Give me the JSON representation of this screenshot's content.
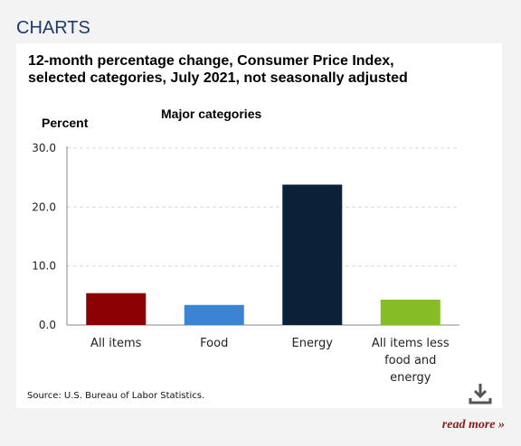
{
  "section_header": "CHARTS",
  "chart_title_lines": [
    "12-month percentage change, Consumer Price Index,",
    "selected categories, July 2021, not seasonally adjusted"
  ],
  "source": "Source: U.S. Bureau of Labor Statistics.",
  "read_more": "read more »",
  "icons": {
    "download": "download-icon"
  },
  "chart_data": {
    "type": "bar",
    "subtitle": "Major categories",
    "ylabel": "Percent",
    "xlabel": "",
    "ylim": [
      0,
      30
    ],
    "yticks": [
      "0.0",
      "10.0",
      "20.0",
      "30.0"
    ],
    "grid": true,
    "categories": [
      [
        "All items"
      ],
      [
        "Food"
      ],
      [
        "Energy"
      ],
      [
        "All items less",
        "food and",
        "energy"
      ]
    ],
    "values": [
      5.4,
      3.4,
      23.8,
      4.3
    ],
    "colors": [
      "#8b0000",
      "#3b84d4",
      "#0b2138",
      "#86bc25"
    ]
  }
}
